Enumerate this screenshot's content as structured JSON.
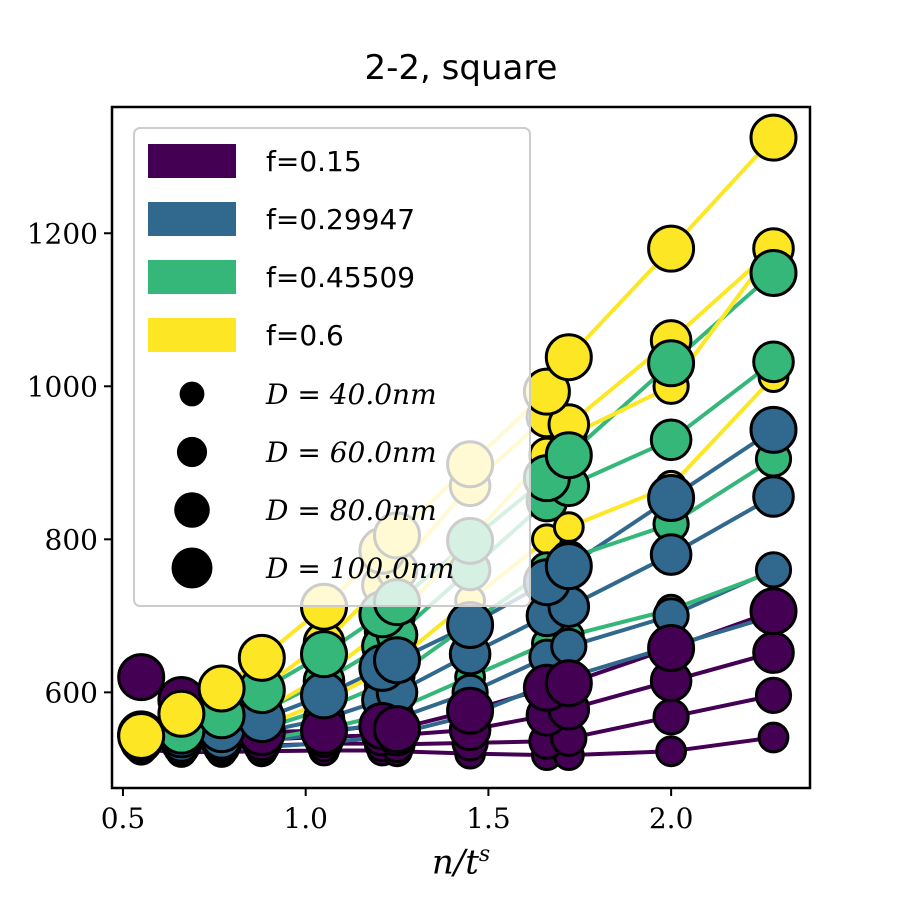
{
  "chart_data": {
    "type": "scatter",
    "title": "2-2, square",
    "xlabel": "n/t^s",
    "ylabel": "",
    "xlim": [
      0.47,
      2.38
    ],
    "ylim": [
      475,
      1365
    ],
    "xticks": [
      0.5,
      1.0,
      1.5,
      2.0
    ],
    "xtick_labels": [
      "0.5",
      "1.0",
      "1.5",
      "2.0"
    ],
    "yticks": [
      600,
      800,
      1000,
      1200
    ],
    "ytick_labels": [
      "600",
      "800",
      "1000",
      "1200"
    ],
    "grid": false,
    "legend_position": "top-left",
    "legend": {
      "color_entries": [
        {
          "label": "f=0.15",
          "color": "#440154"
        },
        {
          "label": "f=0.29947",
          "color": "#31688e"
        },
        {
          "label": "f=0.45509",
          "color": "#35b779"
        },
        {
          "label": "f=0.6",
          "color": "#fde725"
        }
      ],
      "size_entries": [
        {
          "label": "D = 40.0nm",
          "D": 40
        },
        {
          "label": "D = 60.0nm",
          "D": 60
        },
        {
          "label": "D = 80.0nm",
          "D": 80
        },
        {
          "label": "D = 100.0nm",
          "D": 100
        }
      ]
    },
    "series": [
      {
        "f": 0.15,
        "D": 40,
        "color": "#440154",
        "x": [
          0.55,
          0.66,
          0.77,
          0.88,
          1.05,
          1.21,
          1.25,
          1.45,
          1.66,
          1.72,
          2.0,
          2.28
        ],
        "y": [
          525,
          522,
          522,
          523,
          524,
          524,
          523,
          520,
          518,
          518,
          523,
          541
        ]
      },
      {
        "f": 0.15,
        "D": 60,
        "color": "#440154",
        "x": [
          0.55,
          0.66,
          0.77,
          0.88,
          1.05,
          1.21,
          1.25,
          1.45,
          1.66,
          1.72,
          2.0,
          2.28
        ],
        "y": [
          530,
          528,
          528,
          530,
          533,
          533,
          532,
          534,
          536,
          540,
          568,
          596
        ]
      },
      {
        "f": 0.15,
        "D": 80,
        "color": "#440154",
        "x": [
          0.55,
          0.66,
          0.77,
          0.88,
          1.05,
          1.21,
          1.25,
          1.45,
          1.66,
          1.72,
          2.0,
          2.28
        ],
        "y": [
          535,
          535,
          536,
          538,
          542,
          544,
          544,
          551,
          570,
          578,
          615,
          652
        ]
      },
      {
        "f": 0.15,
        "D": 100,
        "color": "#440154",
        "x": [
          0.55,
          0.66,
          0.77,
          0.88,
          1.05,
          1.21,
          1.25,
          1.45,
          1.66,
          1.72,
          2.0,
          2.28
        ],
        "y": [
          620,
          590,
          565,
          548,
          550,
          556,
          552,
          576,
          606,
          612,
          658,
          706
        ]
      },
      {
        "f": 0.29947,
        "D": 40,
        "color": "#31688e",
        "x": [
          0.55,
          0.66,
          0.77,
          0.88,
          1.05,
          1.21,
          1.25,
          1.45,
          1.66,
          1.72,
          2.0,
          2.28
        ],
        "y": [
          528,
          525,
          526,
          528,
          534,
          542,
          546,
          570,
          610,
          620,
          660,
          700
        ]
      },
      {
        "f": 0.29947,
        "D": 60,
        "color": "#31688e",
        "x": [
          0.55,
          0.66,
          0.77,
          0.88,
          1.05,
          1.21,
          1.25,
          1.45,
          1.66,
          1.72,
          2.0,
          2.28
        ],
        "y": [
          532,
          530,
          532,
          536,
          546,
          560,
          566,
          600,
          646,
          660,
          700,
          760
        ]
      },
      {
        "f": 0.29947,
        "D": 80,
        "color": "#31688e",
        "x": [
          0.55,
          0.66,
          0.77,
          0.88,
          1.05,
          1.21,
          1.25,
          1.45,
          1.66,
          1.72,
          2.0,
          2.28
        ],
        "y": [
          538,
          536,
          540,
          548,
          565,
          590,
          600,
          650,
          700,
          712,
          780,
          856
        ]
      },
      {
        "f": 0.29947,
        "D": 100,
        "color": "#31688e",
        "x": [
          0.55,
          0.66,
          0.77,
          0.88,
          1.05,
          1.21,
          1.25,
          1.45,
          1.66,
          1.72,
          2.0,
          2.28
        ],
        "y": [
          545,
          545,
          552,
          565,
          596,
          632,
          642,
          688,
          744,
          765,
          854,
          943
        ]
      },
      {
        "f": 0.45509,
        "D": 40,
        "color": "#35b779",
        "x": [
          0.55,
          0.66,
          0.77,
          0.88,
          1.05,
          1.21,
          1.25,
          1.45,
          1.66,
          1.72,
          2.0,
          2.28
        ],
        "y": [
          530,
          528,
          531,
          538,
          552,
          570,
          578,
          620,
          664,
          674,
          708,
          758
        ]
      },
      {
        "f": 0.45509,
        "D": 60,
        "color": "#35b779",
        "x": [
          0.55,
          0.66,
          0.77,
          0.88,
          1.05,
          1.21,
          1.25,
          1.45,
          1.66,
          1.72,
          2.0,
          2.28
        ],
        "y": [
          535,
          534,
          540,
          552,
          578,
          610,
          622,
          690,
          760,
          775,
          820,
          905
        ]
      },
      {
        "f": 0.45509,
        "D": 80,
        "color": "#35b779",
        "x": [
          0.55,
          0.66,
          0.77,
          0.88,
          1.05,
          1.21,
          1.25,
          1.45,
          1.66,
          1.72,
          2.0,
          2.28
        ],
        "y": [
          540,
          542,
          555,
          575,
          615,
          660,
          675,
          760,
          850,
          870,
          930,
          1032
        ]
      },
      {
        "f": 0.45509,
        "D": 100,
        "color": "#35b779",
        "x": [
          0.55,
          0.66,
          0.77,
          0.88,
          1.05,
          1.21,
          1.25,
          1.45,
          1.66,
          1.72,
          2.0,
          2.28
        ],
        "y": [
          544,
          550,
          570,
          603,
          650,
          702,
          718,
          798,
          880,
          910,
          1030,
          1148
        ]
      },
      {
        "f": 0.6,
        "D": 40,
        "color": "#fde725",
        "x": [
          0.55,
          0.66,
          0.77,
          0.88,
          1.05,
          1.21,
          1.25,
          1.45,
          1.66,
          1.72,
          2.0,
          2.28
        ],
        "y": [
          532,
          532,
          540,
          555,
          588,
          628,
          642,
          720,
          800,
          816,
          870,
          1012
        ]
      },
      {
        "f": 0.6,
        "D": 60,
        "color": "#fde725",
        "x": [
          0.55,
          0.66,
          0.77,
          0.88,
          1.05,
          1.21,
          1.25,
          1.45,
          1.66,
          1.72,
          2.0,
          2.28
        ],
        "y": [
          536,
          540,
          552,
          575,
          622,
          680,
          698,
          800,
          910,
          935,
          1000,
          1180
        ]
      },
      {
        "f": 0.6,
        "D": 80,
        "color": "#fde725",
        "x": [
          0.55,
          0.66,
          0.77,
          0.88,
          1.05,
          1.21,
          1.25,
          1.45,
          1.66,
          1.72,
          2.0,
          2.28
        ],
        "y": [
          540,
          548,
          568,
          605,
          665,
          740,
          760,
          870,
          960,
          950,
          1060,
          1180
        ]
      },
      {
        "f": 0.6,
        "D": 100,
        "color": "#fde725",
        "x": [
          0.55,
          0.66,
          0.77,
          0.88,
          1.05,
          1.21,
          1.25,
          1.45,
          1.66,
          1.72,
          2.0,
          2.28
        ],
        "y": [
          543,
          572,
          605,
          645,
          712,
          785,
          805,
          898,
          993,
          1038,
          1180,
          1325
        ]
      }
    ]
  }
}
